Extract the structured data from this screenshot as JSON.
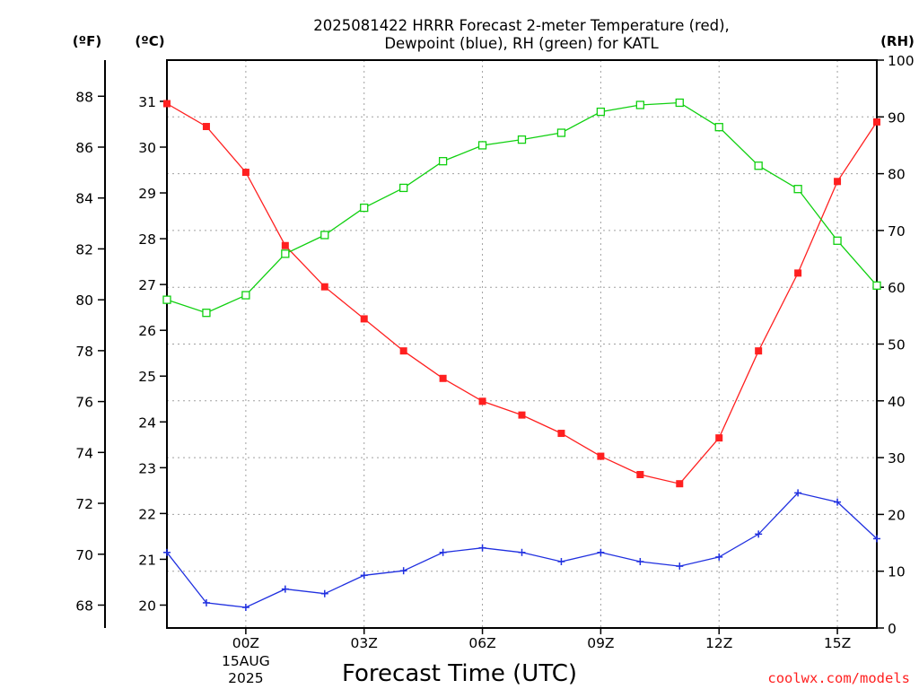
{
  "chart_data": {
    "type": "line",
    "title_lines": [
      "2025081422 HRRR Forecast 2-meter Temperature (red),",
      "Dewpoint (blue), RH (green) for KATL"
    ],
    "xlabel": "Forecast Time (UTC)",
    "x_ticks": [
      {
        "hour": 2,
        "label": "00Z",
        "sub": [
          "15AUG",
          "2025"
        ]
      },
      {
        "hour": 5,
        "label": "03Z",
        "sub": []
      },
      {
        "hour": 8,
        "label": "06Z",
        "sub": []
      },
      {
        "hour": 11,
        "label": "09Z",
        "sub": []
      },
      {
        "hour": 14,
        "label": "12Z",
        "sub": []
      },
      {
        "hour": 17,
        "label": "15Z",
        "sub": []
      }
    ],
    "x_hours": [
      0,
      1,
      2,
      3,
      4,
      5,
      6,
      7,
      8,
      9,
      10,
      11,
      12,
      13,
      14,
      15,
      16,
      17,
      18
    ],
    "xlim": [
      0,
      18
    ],
    "left_axis_c": {
      "unit": "(ºC)",
      "ylim": [
        19.5,
        31.9
      ],
      "ticks": [
        20,
        21,
        22,
        23,
        24,
        25,
        26,
        27,
        28,
        29,
        30,
        31
      ]
    },
    "left_axis_f": {
      "unit": "(ºF)",
      "ticks": [
        68,
        70,
        72,
        74,
        76,
        78,
        80,
        82,
        84,
        86,
        88
      ]
    },
    "right_axis_rh": {
      "unit": "(RH)",
      "ylim": [
        0,
        100
      ],
      "ticks": [
        0,
        10,
        20,
        30,
        40,
        50,
        60,
        70,
        80,
        90,
        100
      ]
    },
    "series": [
      {
        "axis": "c",
        "color": "#ff2020",
        "marker": "filled-square",
        "values": [
          30.95,
          30.45,
          29.45,
          27.85,
          26.95,
          26.25,
          25.55,
          24.95,
          24.45,
          24.15,
          23.75,
          23.25,
          22.85,
          22.65,
          23.65,
          25.55,
          27.25,
          29.25,
          30.55
        ]
      },
      {
        "axis": "c",
        "color": "#2030e0",
        "marker": "plus",
        "values": [
          21.15,
          20.05,
          19.95,
          20.35,
          20.25,
          20.65,
          20.75,
          21.15,
          21.25,
          21.15,
          20.95,
          21.15,
          20.95,
          20.85,
          21.05,
          21.55,
          22.45,
          22.25,
          21.45
        ]
      },
      {
        "axis": "rh",
        "color": "#10d010",
        "marker": "open-square",
        "values": [
          57.8,
          55.5,
          58.6,
          65.9,
          69.2,
          74.0,
          77.5,
          82.2,
          85.0,
          86.0,
          87.2,
          90.9,
          92.1,
          92.5,
          88.2,
          81.4,
          77.3,
          68.2,
          60.3
        ]
      }
    ]
  },
  "credit": "coolwx.com/models"
}
